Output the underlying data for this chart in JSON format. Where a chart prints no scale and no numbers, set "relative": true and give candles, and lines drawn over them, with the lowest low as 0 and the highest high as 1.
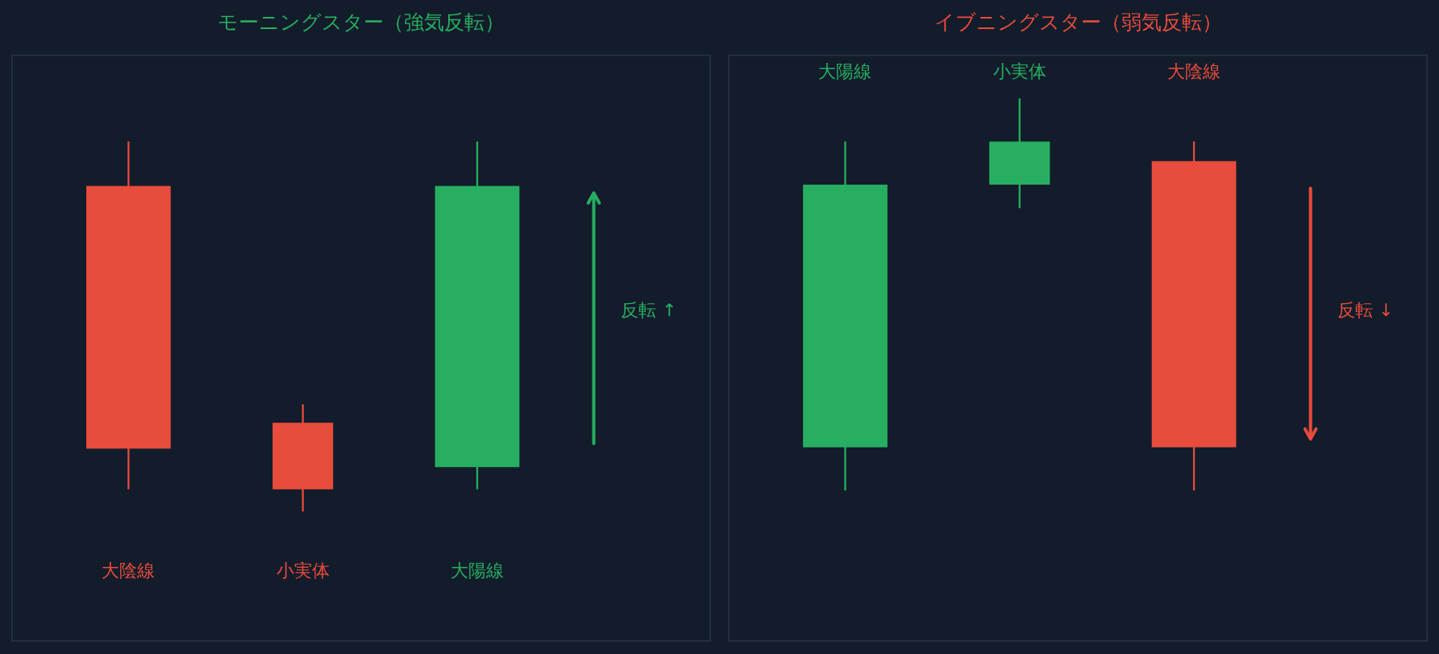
{
  "chart_data": [
    {
      "type": "candlestick",
      "title": "モーニングスター（強気反転）",
      "categories": [
        "大陰線",
        "小実体",
        "大陽線"
      ],
      "ohlc": [
        [
          0.88,
          1,
          0.06,
          0.17
        ],
        [
          0.24,
          0.29,
          0,
          0.06
        ],
        [
          0.12,
          1,
          0.06,
          0.88
        ]
      ],
      "colors": [
        "#e74c3c",
        "#e74c3c",
        "#27ae60"
      ],
      "relative": true,
      "annotations": [
        "反転 ↑"
      ]
    },
    {
      "type": "candlestick",
      "title": "イブニングスター（弱気反転）",
      "categories": [
        "大陽線",
        "小実体",
        "大陰線"
      ],
      "ohlc": [
        [
          0.11,
          0.89,
          0,
          0.78
        ],
        [
          0.78,
          1,
          0.72,
          0.89
        ],
        [
          0.84,
          0.89,
          0,
          0.11
        ]
      ],
      "colors": [
        "#27ae60",
        "#27ae60",
        "#e74c3c"
      ],
      "relative": true,
      "annotations": [
        "反転 ↓"
      ]
    }
  ]
}
